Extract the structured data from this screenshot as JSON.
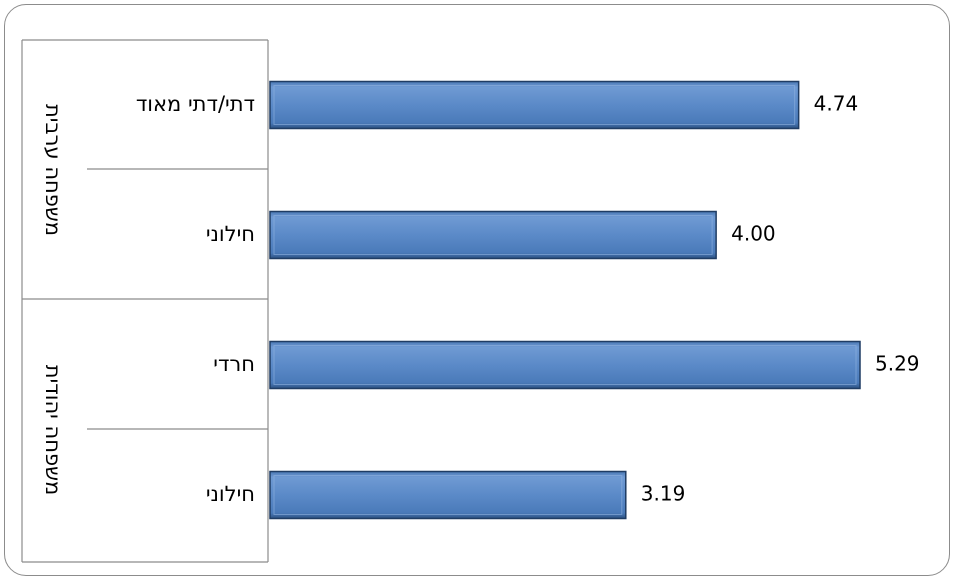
{
  "chart_data": {
    "type": "bar",
    "orientation": "horizontal",
    "groups": [
      {
        "name": "משפחה ערבית",
        "bars": [
          {
            "label": "דתי/דתי מאוד",
            "value": 4.74,
            "value_label": "4.74"
          },
          {
            "label": "חילוני",
            "value": 4.0,
            "value_label": "4.00"
          }
        ]
      },
      {
        "name": "משפחה יהודית",
        "bars": [
          {
            "label": "חרדי",
            "value": 5.29,
            "value_label": "5.29"
          },
          {
            "label": "חילוני",
            "value": 3.19,
            "value_label": "3.19"
          }
        ]
      }
    ],
    "xlim": [
      0,
      5.29
    ],
    "grid": false,
    "legend": "none",
    "bar_color": "#4f81bd",
    "bar_edge_color": "#1f3c63"
  }
}
